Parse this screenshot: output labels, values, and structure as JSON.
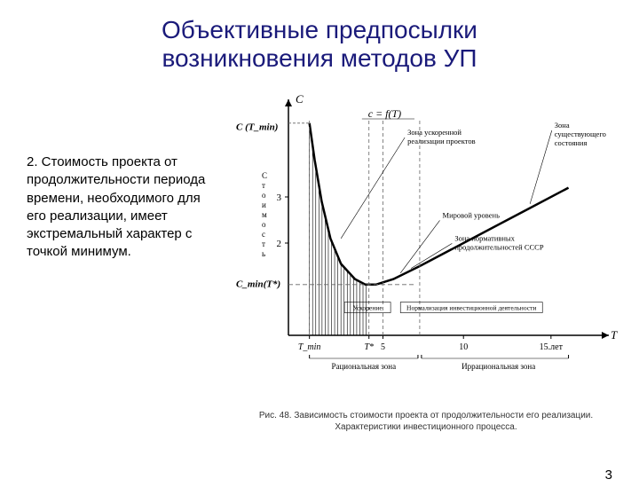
{
  "title_line1": "Объективные предпосылки",
  "title_line2": "возникновения методов УП",
  "body": "2. Стоимость проекта от продолжительности периода времени, необходимого для его реализации, имеет экстремальный характер с точкой минимум.",
  "page_number": "3",
  "caption_line1": "Рис. 48. Зависимость стоимости проекта от продолжительности его реализации.",
  "caption_line2": "Характеристики инвестиционного процесса.",
  "chart": {
    "y_axis_top": "C",
    "y_left_label_top": "C (T_min)",
    "y_left_cost_label": "Стоимость",
    "y_label_cmin": "C_min(T*)",
    "curve_eq": "c = f(T)",
    "x_axis_right": "T",
    "x_tick_Tmin": "T_min",
    "x_tick_Tstar": "T*",
    "x_tick_5": "5",
    "x_tick_10": "10",
    "x_tick_15": "15.лет",
    "zone_rational": "Рациональная зона",
    "zone_irrational": "Иррациональная зона",
    "anno_accel": "Зона ускоренной реализации проектов",
    "anno_exist": "Зона существующего состояния",
    "anno_world": "Мировой уровень",
    "anno_norm": "Зона нормативных продолжительностей СССР",
    "anno_box_accel": "Ускорение",
    "anno_box_norm": "Нормализация инвестиционной деятельности",
    "y_ticks": [
      "2",
      "3"
    ],
    "colors": {
      "axis": "#000000",
      "curve": "#000000",
      "hatch": "#000000",
      "dash": "#666666",
      "text": "#000000"
    },
    "xlim": [
      0,
      18
    ],
    "ylim": [
      0,
      5
    ],
    "curve_points": [
      [
        1.2,
        4.6
      ],
      [
        1.5,
        3.8
      ],
      [
        1.9,
        2.9
      ],
      [
        2.4,
        2.1
      ],
      [
        3.0,
        1.55
      ],
      [
        3.8,
        1.22
      ],
      [
        4.4,
        1.1
      ],
      [
        5.0,
        1.1
      ],
      [
        6.0,
        1.22
      ],
      [
        7.5,
        1.5
      ],
      [
        9.0,
        1.8
      ],
      [
        11.0,
        2.2
      ],
      [
        13.5,
        2.7
      ],
      [
        16.0,
        3.2
      ]
    ]
  }
}
